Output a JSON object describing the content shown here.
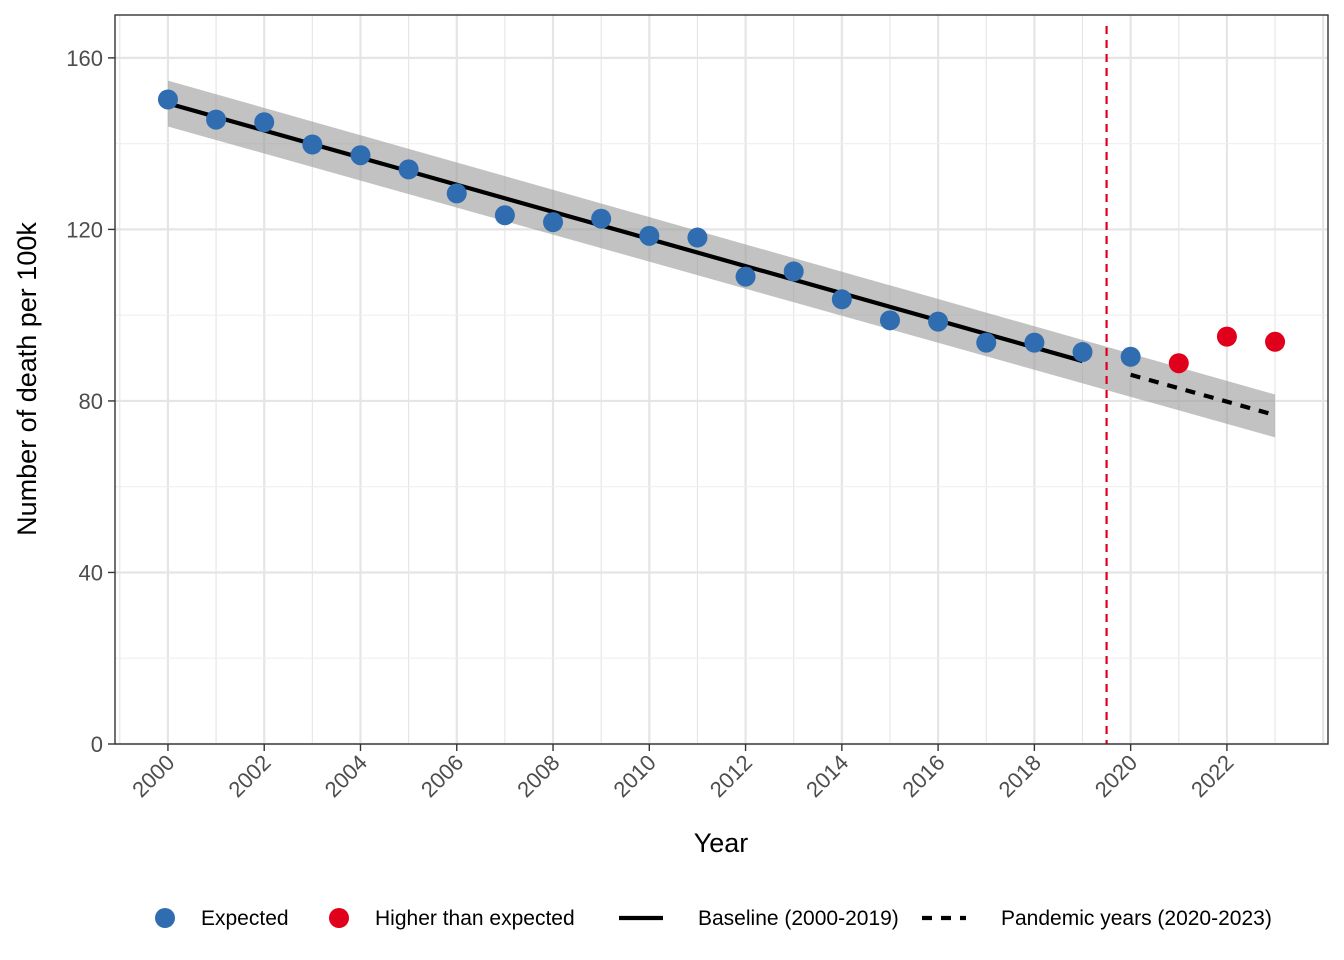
{
  "chart_data": {
    "type": "scatter",
    "xlabel": "Year",
    "ylabel": "Number of death per 100k",
    "xlim": [
      1998.9,
      2024.1
    ],
    "ylim": [
      0,
      170
    ],
    "x_ticks": [
      "2000",
      "2002",
      "2004",
      "2006",
      "2008",
      "2010",
      "2012",
      "2014",
      "2016",
      "2018",
      "2020",
      "2022"
    ],
    "y_ticks": [
      "0",
      "40",
      "80",
      "120",
      "160"
    ],
    "grid": true,
    "legend_position": "bottom",
    "series": [
      {
        "name": "Expected",
        "color": "#2f6db0",
        "x": [
          2000,
          2001,
          2002,
          2003,
          2004,
          2005,
          2006,
          2007,
          2008,
          2009,
          2010,
          2011,
          2012,
          2013,
          2014,
          2015,
          2016,
          2017,
          2018,
          2019,
          2020
        ],
        "y": [
          150.3,
          145.6,
          145.0,
          139.8,
          137.3,
          134.0,
          128.4,
          123.3,
          121.7,
          122.5,
          118.5,
          118.1,
          109.0,
          110.2,
          103.7,
          98.8,
          98.5,
          93.6,
          93.6,
          91.4,
          90.3
        ]
      },
      {
        "name": "Higher than expected",
        "color": "#e0001b",
        "x": [
          2021,
          2022,
          2023
        ],
        "y": [
          88.8,
          95.0,
          93.8
        ]
      }
    ],
    "lines": [
      {
        "name": "Baseline (2000-2019)",
        "style": "solid",
        "x": [
          2000,
          2019
        ],
        "y": [
          149.4,
          89.3
        ]
      },
      {
        "name": "Pandemic years (2020-2023)",
        "style": "dashed",
        "x": [
          2020,
          2023
        ],
        "y": [
          86.1,
          76.7
        ]
      }
    ],
    "confidence_band": {
      "x": [
        2000,
        2023
      ],
      "upper": [
        154.7,
        81.5
      ],
      "lower": [
        144.0,
        71.5
      ]
    },
    "vline": {
      "x": 2019.5,
      "color": "#e0001b",
      "style": "dashed"
    },
    "legend": [
      {
        "label": "Expected",
        "kind": "point",
        "color": "#2f6db0"
      },
      {
        "label": "Higher than expected",
        "kind": "point",
        "color": "#e0001b"
      },
      {
        "label": "Baseline (2000-2019)",
        "kind": "line-solid",
        "color": "#000000"
      },
      {
        "label": "Pandemic years (2020-2023)",
        "kind": "line-dashed",
        "color": "#000000"
      }
    ]
  }
}
